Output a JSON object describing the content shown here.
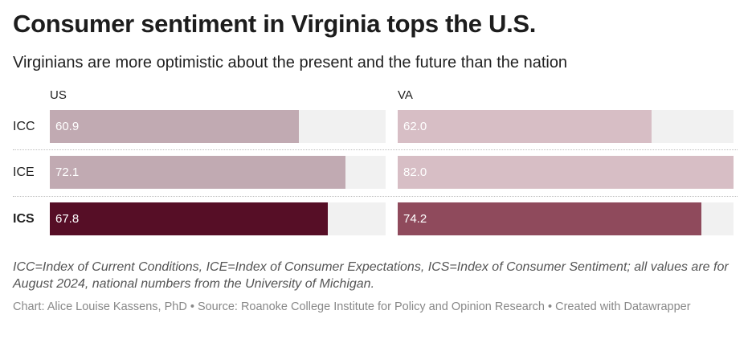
{
  "title": "Consumer sentiment in Virginia tops the U.S.",
  "subtitle": "Virginians are more optimistic about the present and the future than the nation",
  "notes": "ICC=Index of Current Conditions, ICE=Index of Consumer Expectations, ICS=Index of Consumer Sentiment; all values are for August 2024, national numbers from the University of Michigan.",
  "byline": "Chart: Alice Louise Kassens, PhD • Source: Roanoke College Institute for Policy and Opinion Research • Created with Datawrapper",
  "chart_data": {
    "type": "bar",
    "orientation": "horizontal",
    "categories": [
      "ICC",
      "ICE",
      "ICS"
    ],
    "xlim": [
      0,
      82
    ],
    "series": [
      {
        "name": "US",
        "values": [
          60.9,
          72.1,
          67.8
        ],
        "labels": [
          "60.9",
          "72.1",
          "67.8"
        ],
        "colors": [
          "#c1aab2",
          "#c1aab2",
          "#560e26"
        ]
      },
      {
        "name": "VA",
        "values": [
          62.0,
          82.0,
          74.2
        ],
        "labels": [
          "62.0",
          "82.0",
          "74.2"
        ],
        "colors": [
          "#d7bec5",
          "#d7bec5",
          "#8f4a5c"
        ]
      }
    ],
    "highlight_category": "ICS",
    "grid": false
  }
}
